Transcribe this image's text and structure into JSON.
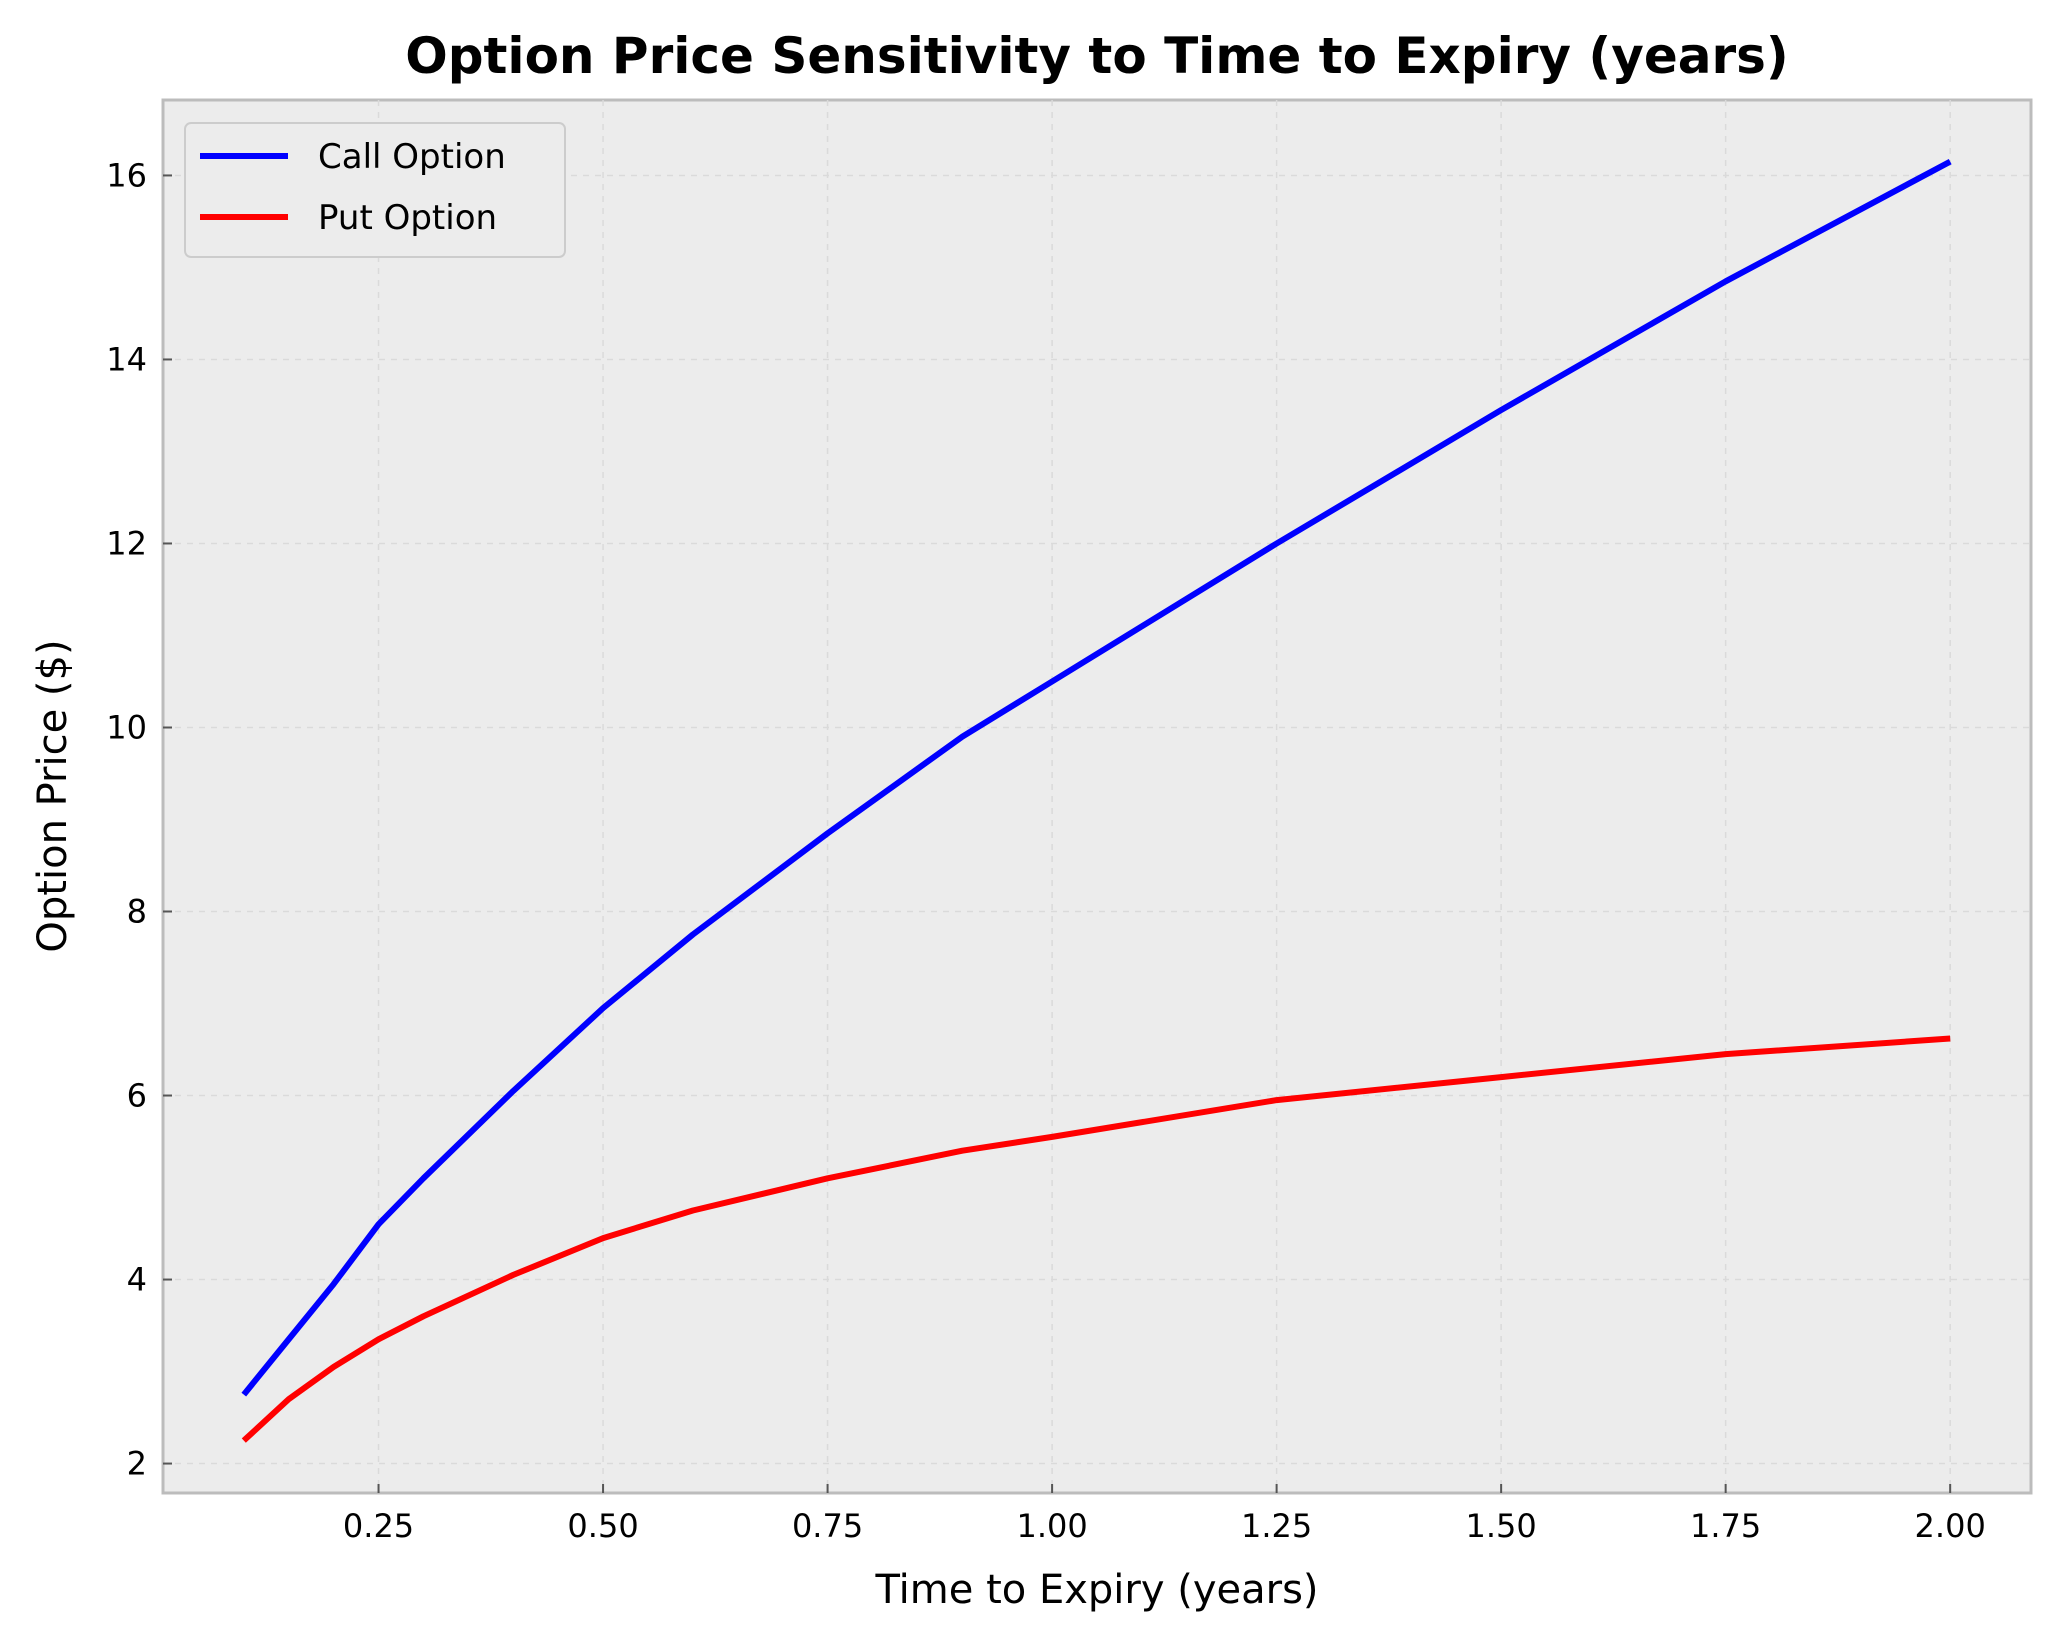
{
  "chart_data": {
    "type": "line",
    "title": "Option Price Sensitivity to Time to Expiry (years)",
    "xlabel": "Time to Expiry (years)",
    "ylabel": "Option Price ($)",
    "xlim": [
      0.01,
      2.09
    ],
    "ylim": [
      1.68,
      16.82
    ],
    "xticks": [
      0.25,
      0.5,
      0.75,
      1.0,
      1.25,
      1.5,
      1.75,
      2.0
    ],
    "xtick_labels": [
      "0.25",
      "0.50",
      "0.75",
      "1.00",
      "1.25",
      "1.50",
      "1.75",
      "2.00"
    ],
    "yticks": [
      2,
      4,
      6,
      8,
      10,
      12,
      14,
      16
    ],
    "ytick_labels": [
      "2",
      "4",
      "6",
      "8",
      "10",
      "12",
      "14",
      "16"
    ],
    "grid": true,
    "legend_position": "top-left",
    "x": [
      0.1,
      0.15,
      0.2,
      0.25,
      0.3,
      0.4,
      0.5,
      0.6,
      0.75,
      0.9,
      1.0,
      1.25,
      1.5,
      1.75,
      2.0
    ],
    "series": [
      {
        "name": "Call Option",
        "color": "#0000ff",
        "values": [
          2.75,
          3.35,
          3.95,
          4.6,
          5.1,
          6.05,
          6.95,
          7.75,
          8.85,
          9.9,
          10.5,
          12.0,
          13.45,
          14.85,
          16.15
        ]
      },
      {
        "name": "Put Option",
        "color": "#ff0000",
        "values": [
          2.25,
          2.7,
          3.05,
          3.35,
          3.6,
          4.05,
          4.45,
          4.75,
          5.1,
          5.4,
          5.55,
          5.95,
          6.2,
          6.45,
          6.62
        ]
      }
    ]
  }
}
